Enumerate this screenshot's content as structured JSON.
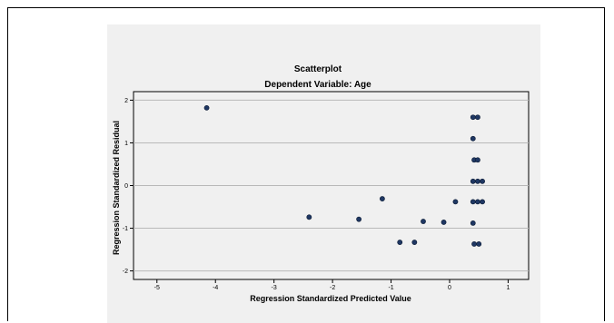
{
  "chart_data": {
    "type": "scatter",
    "title": "Scatterplot",
    "subtitle": "Dependent Variable: Age",
    "xlabel": "Regression Standardized Predicted Value",
    "ylabel": "Regression Standardized Residual",
    "xlim": [
      -5.4,
      1.35
    ],
    "ylim": [
      -2.2,
      2.2
    ],
    "xticks": [
      -5,
      -4,
      -3,
      -2,
      -1,
      0,
      1
    ],
    "yticks": [
      -2,
      -1,
      0,
      1,
      2
    ],
    "grid": "horizontal",
    "point_color": "#1f3763",
    "points": [
      {
        "x": -4.15,
        "y": 1.82
      },
      {
        "x": -2.4,
        "y": -0.74
      },
      {
        "x": -1.55,
        "y": -0.79
      },
      {
        "x": -1.15,
        "y": -0.31
      },
      {
        "x": -0.85,
        "y": -1.33
      },
      {
        "x": -0.6,
        "y": -1.33
      },
      {
        "x": -0.45,
        "y": -0.84
      },
      {
        "x": -0.1,
        "y": -0.86
      },
      {
        "x": 0.1,
        "y": -0.38
      },
      {
        "x": 0.4,
        "y": 1.6
      },
      {
        "x": 0.48,
        "y": 1.6
      },
      {
        "x": 0.4,
        "y": 1.1
      },
      {
        "x": 0.42,
        "y": 0.6
      },
      {
        "x": 0.48,
        "y": 0.6
      },
      {
        "x": 0.4,
        "y": 0.1
      },
      {
        "x": 0.48,
        "y": 0.1
      },
      {
        "x": 0.56,
        "y": 0.1
      },
      {
        "x": 0.4,
        "y": -0.38
      },
      {
        "x": 0.48,
        "y": -0.38
      },
      {
        "x": 0.56,
        "y": -0.38
      },
      {
        "x": 0.4,
        "y": -0.88
      },
      {
        "x": 0.42,
        "y": -1.37
      },
      {
        "x": 0.5,
        "y": -1.37
      }
    ]
  }
}
